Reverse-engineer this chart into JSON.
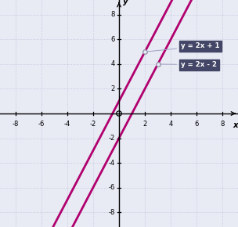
{
  "title": "",
  "xlabel": "x",
  "ylabel": "y",
  "xlim": [
    -9.2,
    9.2
  ],
  "ylim": [
    -9.2,
    9.2
  ],
  "xticks": [
    -8,
    -6,
    -4,
    -2,
    2,
    4,
    6,
    8
  ],
  "yticks": [
    -8,
    -6,
    -4,
    -2,
    2,
    4,
    6,
    8
  ],
  "line_color": "#b0006e",
  "line_width": 2.0,
  "background_color": "#e8eaf4",
  "axis_color": "#000000",
  "grid_color": "#c0c4d8",
  "label_box_color": "#434666",
  "label_text_color": "#ffffff",
  "line1_label": "y = 2x + 1",
  "line2_label": "y = 2x - 2",
  "line1_point": [
    2,
    5
  ],
  "line2_point": [
    3,
    4
  ],
  "figsize": [
    3.04,
    2.9
  ],
  "dpi": 100
}
